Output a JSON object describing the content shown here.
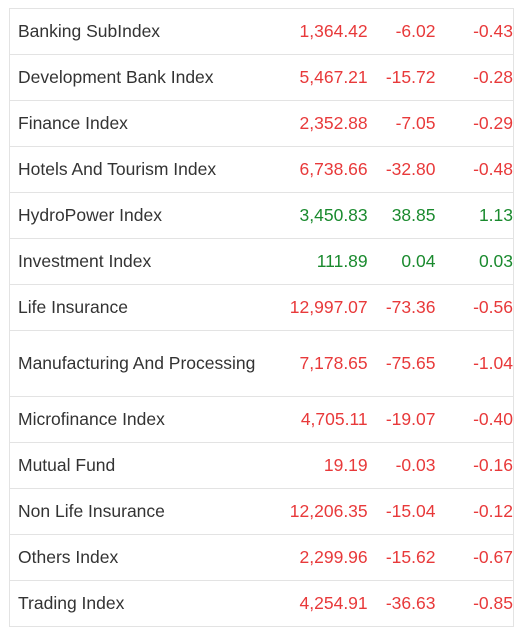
{
  "colors": {
    "negative": "#e8393a",
    "positive": "#1a8a2e",
    "text": "#333333",
    "border": "#e3e3e3"
  },
  "rows": [
    {
      "name": "Banking SubIndex",
      "value": "1,364.42",
      "change": "-6.02",
      "percent": "-0.43",
      "direction": "neg"
    },
    {
      "name": "Development Bank Index",
      "value": "5,467.21",
      "change": "-15.72",
      "percent": "-0.28",
      "direction": "neg"
    },
    {
      "name": "Finance Index",
      "value": "2,352.88",
      "change": "-7.05",
      "percent": "-0.29",
      "direction": "neg"
    },
    {
      "name": "Hotels And Tourism Index",
      "value": "6,738.66",
      "change": "-32.80",
      "percent": "-0.48",
      "direction": "neg"
    },
    {
      "name": "HydroPower Index",
      "value": "3,450.83",
      "change": "38.85",
      "percent": "1.13",
      "direction": "pos"
    },
    {
      "name": "Investment Index",
      "value": "111.89",
      "change": "0.04",
      "percent": "0.03",
      "direction": "pos"
    },
    {
      "name": "Life Insurance",
      "value": "12,997.07",
      "change": "-73.36",
      "percent": "-0.56",
      "direction": "neg"
    },
    {
      "name": "Manufacturing And Processing",
      "value": "7,178.65",
      "change": "-75.65",
      "percent": "-1.04",
      "direction": "neg"
    },
    {
      "name": "Microfinance Index",
      "value": "4,705.11",
      "change": "-19.07",
      "percent": "-0.40",
      "direction": "neg"
    },
    {
      "name": "Mutual Fund",
      "value": "19.19",
      "change": "-0.03",
      "percent": "-0.16",
      "direction": "neg"
    },
    {
      "name": "Non Life Insurance",
      "value": "12,206.35",
      "change": "-15.04",
      "percent": "-0.12",
      "direction": "neg"
    },
    {
      "name": "Others Index",
      "value": "2,299.96",
      "change": "-15.62",
      "percent": "-0.67",
      "direction": "neg"
    },
    {
      "name": "Trading Index",
      "value": "4,254.91",
      "change": "-36.63",
      "percent": "-0.85",
      "direction": "neg"
    }
  ]
}
